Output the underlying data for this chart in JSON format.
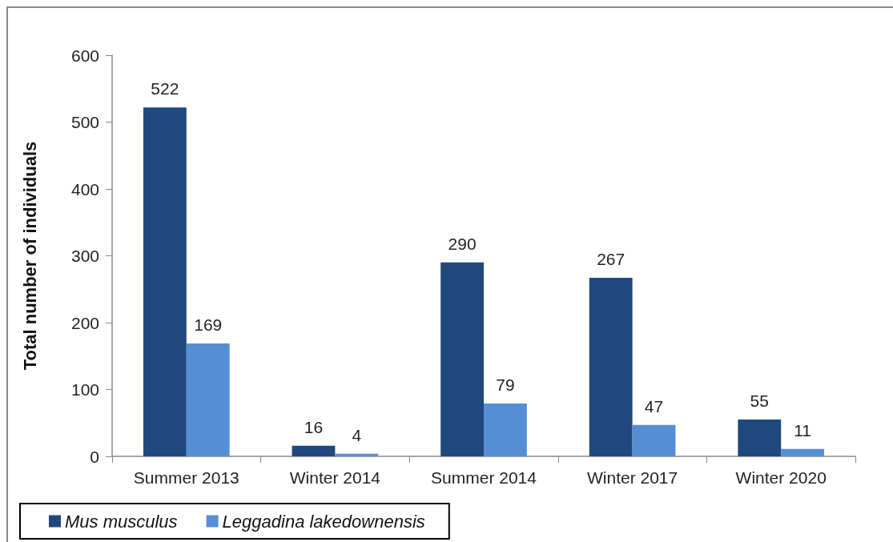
{
  "chart_data": {
    "type": "bar",
    "ylabel": "Total number of individuals",
    "categories": [
      "Summer 2013",
      "Winter 2014",
      "Summer 2014",
      "Winter 2017",
      "Winter 2020"
    ],
    "series": [
      {
        "name": "Mus musculus",
        "color": "#1f497d",
        "values": [
          522,
          16,
          290,
          267,
          55
        ]
      },
      {
        "name": "Leggadina lakedownensis",
        "color": "#558ed5",
        "values": [
          169,
          4,
          79,
          47,
          11
        ]
      }
    ],
    "ylim": [
      0,
      600
    ],
    "yticks": [
      0,
      100,
      200,
      300,
      400,
      500,
      600
    ],
    "grid": false,
    "legend": "bottom left",
    "data_labels": true
  }
}
